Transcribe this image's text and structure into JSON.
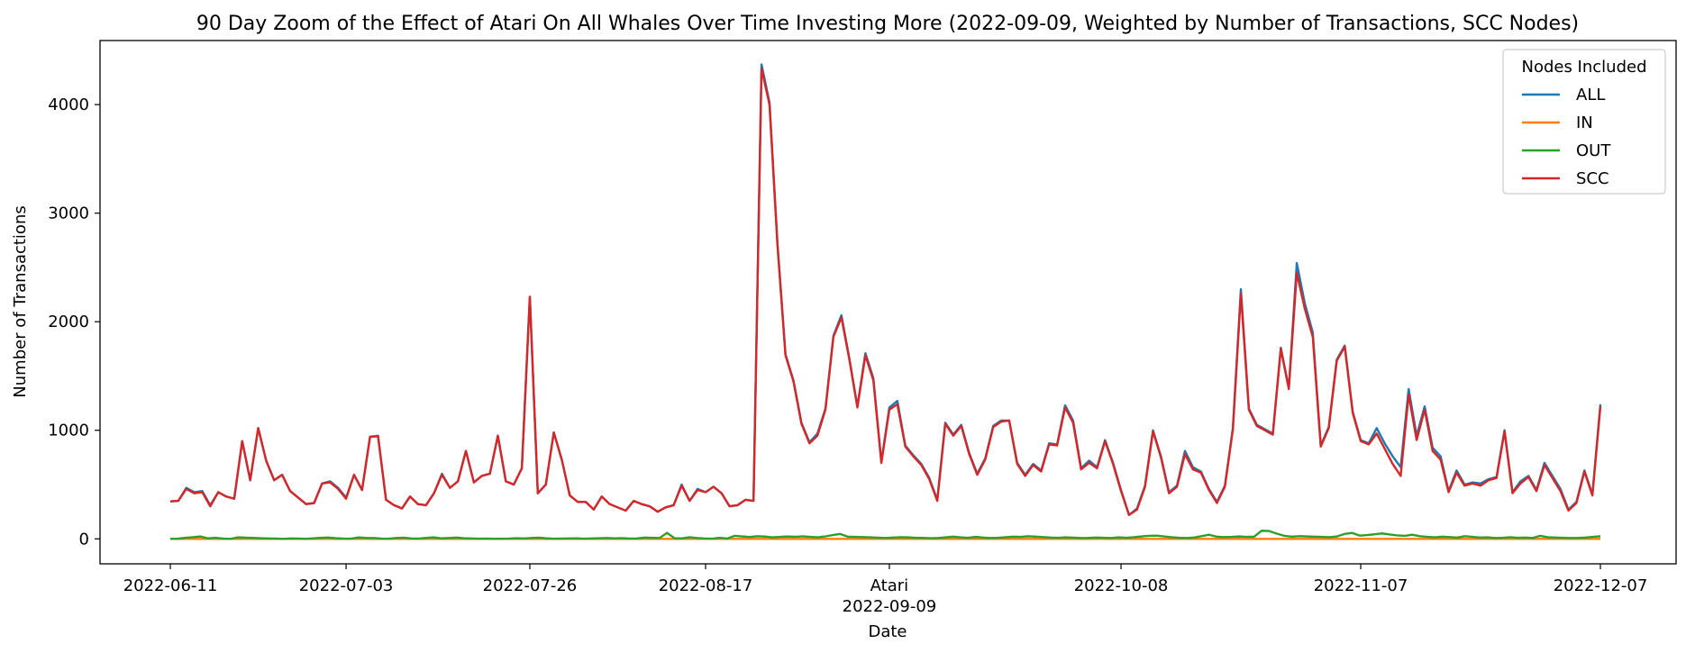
{
  "chart_data": {
    "type": "line",
    "title": "90 Day Zoom of the Effect of Atari On All Whales Over Time Investing More (2022-09-09, Weighted by Number of Transactions, SCC Nodes)",
    "xlabel": "Date",
    "ylabel": "Number of Transactions",
    "ylim": [
      -230,
      4590
    ],
    "y_ticks": [
      0,
      1000,
      2000,
      3000,
      4000
    ],
    "x_tick_labels": [
      "2022-06-11",
      "2022-07-03",
      "2022-07-26",
      "2022-08-17",
      "2022-10-08",
      "2022-11-07",
      "2022-12-07"
    ],
    "event": {
      "label": "Atari",
      "date": "2022-09-09"
    },
    "legend": {
      "title": "Nodes Included",
      "position": "top-right"
    },
    "grid": false,
    "x_start": "2022-06-11",
    "x_end": "2022-12-07",
    "scc": [
      345,
      350,
      460,
      420,
      430,
      300,
      430,
      390,
      370,
      900,
      540,
      1020,
      720,
      540,
      590,
      440,
      380,
      320,
      330,
      510,
      520,
      460,
      370,
      590,
      450,
      940,
      945,
      360,
      310,
      280,
      390,
      320,
      310,
      420,
      590,
      470,
      530,
      810,
      520,
      580,
      600,
      950,
      530,
      500,
      650,
      2230,
      420,
      500,
      980,
      730,
      400,
      340,
      340,
      270,
      390,
      320,
      290,
      260,
      350,
      320,
      300,
      250,
      290,
      310,
      490,
      350,
      450,
      430,
      480,
      420,
      300,
      310,
      360,
      350,
      4330,
      4000,
      2700,
      1690,
      1450,
      1060,
      880,
      950,
      1190,
      1860,
      2040,
      1650,
      1210,
      1690,
      1460,
      700,
      1190,
      1240,
      850,
      760,
      680,
      550,
      350,
      1060,
      950,
      1040,
      780,
      590,
      730,
      1030,
      1080,
      1090,
      690,
      580,
      680,
      620,
      870,
      860,
      1210,
      1070,
      640,
      700,
      650,
      900,
      690,
      440,
      220,
      270,
      480,
      990,
      750,
      420,
      480,
      780,
      640,
      610,
      450,
      330,
      480,
      1010,
      2260,
      1190,
      1040,
      1000,
      960,
      1750,
      1380,
      2450,
      2120,
      1860,
      850,
      1020,
      1640,
      1770,
      1160,
      900,
      870,
      970,
      830,
      690,
      580,
      1330,
      910,
      1190,
      810,
      730,
      430,
      610,
      490,
      510,
      490,
      540,
      560,
      990,
      420,
      510,
      570,
      440,
      680,
      560,
      440,
      260,
      330,
      620,
      400,
      1220
    ],
    "all": [
      345,
      350,
      470,
      430,
      440,
      310,
      430,
      390,
      370,
      900,
      540,
      1020,
      720,
      540,
      590,
      440,
      380,
      320,
      330,
      510,
      530,
      470,
      380,
      590,
      450,
      940,
      950,
      360,
      310,
      280,
      390,
      320,
      310,
      420,
      600,
      470,
      530,
      810,
      520,
      580,
      600,
      950,
      530,
      500,
      650,
      2230,
      420,
      500,
      980,
      730,
      400,
      340,
      340,
      270,
      390,
      320,
      290,
      260,
      350,
      320,
      300,
      250,
      290,
      310,
      500,
      350,
      460,
      430,
      480,
      420,
      300,
      310,
      360,
      350,
      4370,
      4020,
      2720,
      1700,
      1460,
      1070,
      890,
      970,
      1200,
      1870,
      2060,
      1660,
      1220,
      1710,
      1480,
      710,
      1210,
      1270,
      860,
      770,
      690,
      560,
      360,
      1070,
      960,
      1050,
      790,
      600,
      740,
      1040,
      1090,
      1090,
      700,
      590,
      690,
      630,
      880,
      870,
      1230,
      1090,
      650,
      720,
      660,
      910,
      700,
      450,
      220,
      280,
      490,
      1000,
      760,
      430,
      490,
      810,
      660,
      620,
      460,
      340,
      490,
      1020,
      2300,
      1200,
      1050,
      1010,
      970,
      1760,
      1390,
      2540,
      2170,
      1900,
      860,
      1030,
      1650,
      1780,
      1170,
      910,
      880,
      1020,
      880,
      760,
      660,
      1380,
      950,
      1220,
      840,
      760,
      440,
      630,
      500,
      520,
      510,
      550,
      570,
      1000,
      430,
      530,
      580,
      450,
      700,
      580,
      460,
      270,
      340,
      630,
      410,
      1240
    ],
    "out": [
      0,
      2,
      10,
      15,
      22,
      5,
      10,
      3,
      0,
      14,
      11,
      9,
      6,
      4,
      3,
      0,
      4,
      3,
      1,
      5,
      10,
      12,
      6,
      3,
      2,
      13,
      9,
      8,
      3,
      2,
      8,
      11,
      4,
      3,
      9,
      14,
      5,
      8,
      12,
      6,
      4,
      2,
      3,
      1,
      2,
      3,
      6,
      4,
      8,
      11,
      5,
      2,
      3,
      4,
      5,
      2,
      4,
      6,
      8,
      5,
      7,
      3,
      4,
      12,
      10,
      8,
      55,
      6,
      5,
      15,
      8,
      4,
      2,
      10,
      3,
      28,
      22,
      17,
      24,
      21,
      14,
      18,
      22,
      19,
      23,
      18,
      14,
      22,
      35,
      45,
      20,
      18,
      16,
      14,
      11,
      8,
      12,
      15,
      14,
      10,
      9,
      6,
      8,
      14,
      20,
      14,
      10,
      18,
      12,
      8,
      10,
      15,
      20,
      18,
      24,
      20,
      16,
      12,
      10,
      14,
      11,
      8,
      9,
      12,
      10,
      8,
      14,
      10,
      15,
      22,
      28,
      30,
      22,
      15,
      10,
      8,
      12,
      25,
      38,
      20,
      16,
      18,
      22,
      18,
      20,
      75,
      72,
      48,
      28,
      20,
      25,
      22,
      20,
      18,
      15,
      22,
      45,
      55,
      30,
      35,
      42,
      50,
      40,
      32,
      28,
      38,
      25,
      18,
      14,
      20,
      16,
      12,
      25,
      18,
      12,
      14,
      8,
      10,
      15,
      10,
      12,
      8,
      28,
      15,
      12,
      10,
      8,
      9,
      12,
      18,
      24
    ]
  }
}
